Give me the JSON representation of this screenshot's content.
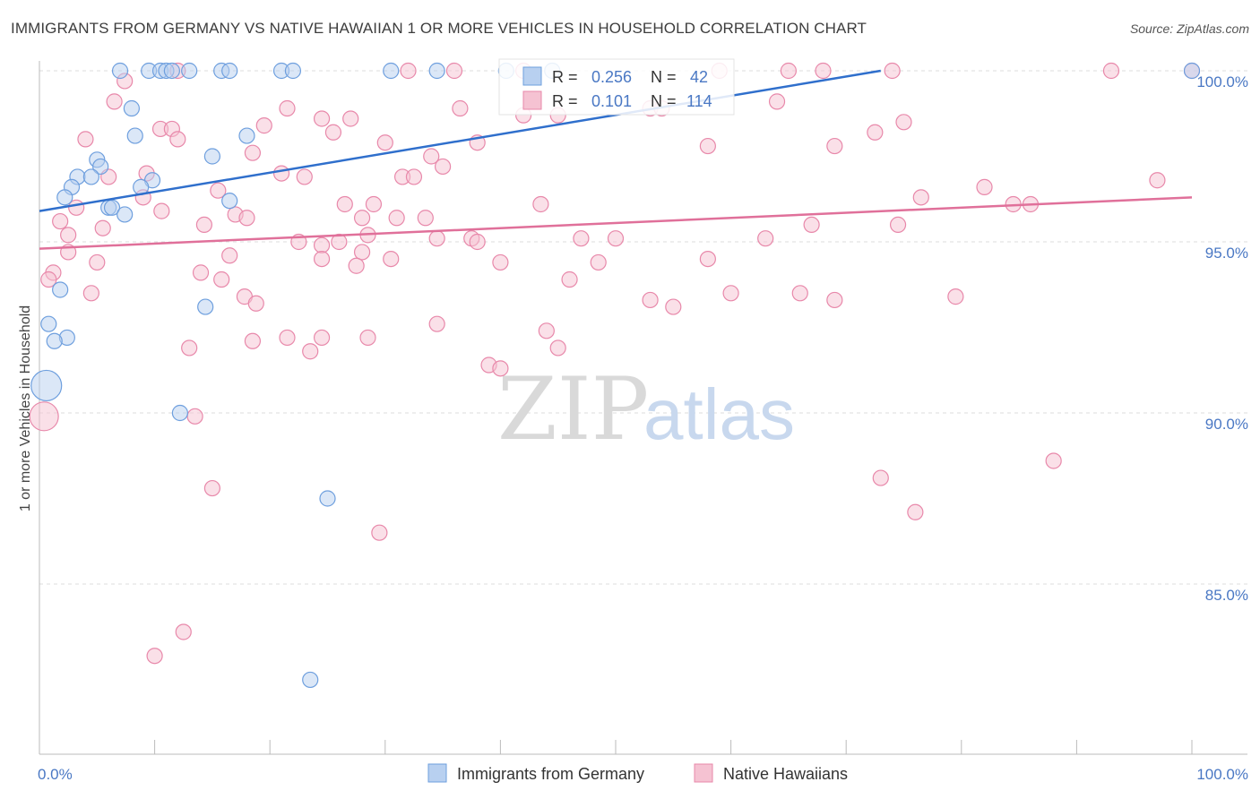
{
  "header": {
    "title": "IMMIGRANTS FROM GERMANY VS NATIVE HAWAIIAN 1 OR MORE VEHICLES IN HOUSEHOLD CORRELATION CHART",
    "source": "Source: ZipAtlas.com"
  },
  "watermark": {
    "zip": "ZIP",
    "atlas": "atlas"
  },
  "chart_data": {
    "type": "scatter",
    "title": "IMMIGRANTS FROM GERMANY VS NATIVE HAWAIIAN 1 OR MORE VEHICLES IN HOUSEHOLD CORRELATION CHART",
    "xlabel": "",
    "ylabel": "1 or more Vehicles in Household",
    "xlim": [
      0,
      100
    ],
    "ylim": [
      80.5,
      100.8
    ],
    "x_ticks": [
      {
        "value": 0,
        "label": "0.0%"
      },
      {
        "value": 100,
        "label": "100.0%"
      }
    ],
    "y_ticks": [
      {
        "value": 100,
        "label": "100.0%"
      },
      {
        "value": 95,
        "label": "95.0%"
      },
      {
        "value": 90,
        "label": "90.0%"
      },
      {
        "value": 85,
        "label": "85.0%"
      }
    ],
    "grid": true,
    "legend_position": "top-center",
    "stats": [
      {
        "series": "Immigrants from Germany",
        "r_label": "R =",
        "r": "0.256",
        "n_label": "N =",
        "n": "42"
      },
      {
        "series": "Native Hawaiians",
        "r_label": "R =",
        "r": "0.101",
        "n_label": "N =",
        "n": "114"
      }
    ],
    "series": [
      {
        "name": "Immigrants from Germany",
        "color": "#6e9fde",
        "fill": "#b8d0f0",
        "trend": {
          "x0": 0,
          "y0": 95.9,
          "x1": 73,
          "y1": 100.0
        },
        "points": [
          {
            "x": 7,
            "y": 100
          },
          {
            "x": 9.5,
            "y": 100
          },
          {
            "x": 10.5,
            "y": 100
          },
          {
            "x": 11,
            "y": 100
          },
          {
            "x": 11.5,
            "y": 100
          },
          {
            "x": 13,
            "y": 100
          },
          {
            "x": 15.8,
            "y": 100
          },
          {
            "x": 16.5,
            "y": 100
          },
          {
            "x": 21,
            "y": 100
          },
          {
            "x": 22,
            "y": 100
          },
          {
            "x": 30.5,
            "y": 100
          },
          {
            "x": 34.5,
            "y": 100
          },
          {
            "x": 40.5,
            "y": 100
          },
          {
            "x": 44.5,
            "y": 100
          },
          {
            "x": 100,
            "y": 100
          },
          {
            "x": 8,
            "y": 98.9
          },
          {
            "x": 8.3,
            "y": 98.1
          },
          {
            "x": 18,
            "y": 98.1
          },
          {
            "x": 5,
            "y": 97.4
          },
          {
            "x": 5.3,
            "y": 97.2
          },
          {
            "x": 15,
            "y": 97.5
          },
          {
            "x": 3.3,
            "y": 96.9
          },
          {
            "x": 4.5,
            "y": 96.9
          },
          {
            "x": 9.8,
            "y": 96.8
          },
          {
            "x": 2.8,
            "y": 96.6
          },
          {
            "x": 8.8,
            "y": 96.6
          },
          {
            "x": 2.2,
            "y": 96.3
          },
          {
            "x": 16.5,
            "y": 96.2
          },
          {
            "x": 6,
            "y": 96.0
          },
          {
            "x": 6.3,
            "y": 96.0
          },
          {
            "x": 7.4,
            "y": 95.8
          },
          {
            "x": 1.8,
            "y": 93.6
          },
          {
            "x": 14.4,
            "y": 93.1
          },
          {
            "x": 0.8,
            "y": 92.6
          },
          {
            "x": 2.4,
            "y": 92.2
          },
          {
            "x": 1.3,
            "y": 92.1
          },
          {
            "x": 0.6,
            "y": 90.8,
            "r": 17
          },
          {
            "x": 12.2,
            "y": 90.0
          },
          {
            "x": 25,
            "y": 87.5
          },
          {
            "x": 23.5,
            "y": 82.2
          }
        ]
      },
      {
        "name": "Native Hawaiians",
        "color": "#e888aa",
        "fill": "#f5c2d2",
        "trend": {
          "x0": 0,
          "y0": 94.8,
          "x1": 100,
          "y1": 96.3
        },
        "points": [
          {
            "x": 12,
            "y": 100
          },
          {
            "x": 32,
            "y": 100
          },
          {
            "x": 36,
            "y": 100
          },
          {
            "x": 42,
            "y": 100
          },
          {
            "x": 59,
            "y": 100
          },
          {
            "x": 65,
            "y": 100
          },
          {
            "x": 68,
            "y": 100
          },
          {
            "x": 74,
            "y": 100
          },
          {
            "x": 93,
            "y": 100
          },
          {
            "x": 100,
            "y": 100
          },
          {
            "x": 7.4,
            "y": 99.7
          },
          {
            "x": 6.5,
            "y": 99.1
          },
          {
            "x": 21.5,
            "y": 98.9
          },
          {
            "x": 36.5,
            "y": 98.9
          },
          {
            "x": 53,
            "y": 98.9
          },
          {
            "x": 54,
            "y": 98.9
          },
          {
            "x": 64,
            "y": 99.1
          },
          {
            "x": 24.5,
            "y": 98.6
          },
          {
            "x": 27,
            "y": 98.6
          },
          {
            "x": 42,
            "y": 98.7
          },
          {
            "x": 45,
            "y": 98.7
          },
          {
            "x": 19.5,
            "y": 98.4
          },
          {
            "x": 25.5,
            "y": 98.2
          },
          {
            "x": 10.5,
            "y": 98.3
          },
          {
            "x": 11.5,
            "y": 98.3
          },
          {
            "x": 12,
            "y": 98.0
          },
          {
            "x": 4,
            "y": 98.0
          },
          {
            "x": 30,
            "y": 97.9
          },
          {
            "x": 38,
            "y": 97.9
          },
          {
            "x": 58,
            "y": 97.8
          },
          {
            "x": 69,
            "y": 97.8
          },
          {
            "x": 72.5,
            "y": 98.2
          },
          {
            "x": 75,
            "y": 98.5
          },
          {
            "x": 18.5,
            "y": 97.6
          },
          {
            "x": 34,
            "y": 97.5
          },
          {
            "x": 35,
            "y": 97.2
          },
          {
            "x": 9.3,
            "y": 97.0
          },
          {
            "x": 21,
            "y": 97.0
          },
          {
            "x": 23,
            "y": 96.9
          },
          {
            "x": 31.5,
            "y": 96.9
          },
          {
            "x": 32.5,
            "y": 96.9
          },
          {
            "x": 97,
            "y": 96.8
          },
          {
            "x": 6,
            "y": 96.9
          },
          {
            "x": 9,
            "y": 96.3
          },
          {
            "x": 15.5,
            "y": 96.5
          },
          {
            "x": 82,
            "y": 96.6
          },
          {
            "x": 76.5,
            "y": 96.3
          },
          {
            "x": 84.5,
            "y": 96.1
          },
          {
            "x": 86,
            "y": 96.1
          },
          {
            "x": 26.5,
            "y": 96.1
          },
          {
            "x": 29,
            "y": 96.1
          },
          {
            "x": 43.5,
            "y": 96.1
          },
          {
            "x": 3.2,
            "y": 96.0
          },
          {
            "x": 10.6,
            "y": 95.9
          },
          {
            "x": 17,
            "y": 95.8
          },
          {
            "x": 28,
            "y": 95.7
          },
          {
            "x": 31,
            "y": 95.7
          },
          {
            "x": 33.5,
            "y": 95.7
          },
          {
            "x": 1.8,
            "y": 95.6
          },
          {
            "x": 14.3,
            "y": 95.5
          },
          {
            "x": 5.5,
            "y": 95.4
          },
          {
            "x": 18,
            "y": 95.7
          },
          {
            "x": 67,
            "y": 95.5
          },
          {
            "x": 74.5,
            "y": 95.5
          },
          {
            "x": 2.5,
            "y": 95.2
          },
          {
            "x": 28.5,
            "y": 95.2
          },
          {
            "x": 22.5,
            "y": 95.0
          },
          {
            "x": 24.5,
            "y": 94.9
          },
          {
            "x": 26,
            "y": 95.0
          },
          {
            "x": 34.5,
            "y": 95.1
          },
          {
            "x": 37.5,
            "y": 95.1
          },
          {
            "x": 38,
            "y": 95.0
          },
          {
            "x": 47,
            "y": 95.1
          },
          {
            "x": 50,
            "y": 95.1
          },
          {
            "x": 63,
            "y": 95.1
          },
          {
            "x": 2.5,
            "y": 94.7
          },
          {
            "x": 16.5,
            "y": 94.6
          },
          {
            "x": 28,
            "y": 94.7
          },
          {
            "x": 24.5,
            "y": 94.5
          },
          {
            "x": 30.5,
            "y": 94.5
          },
          {
            "x": 40,
            "y": 94.4
          },
          {
            "x": 58,
            "y": 94.5
          },
          {
            "x": 48.5,
            "y": 94.4
          },
          {
            "x": 5,
            "y": 94.4
          },
          {
            "x": 27.5,
            "y": 94.3
          },
          {
            "x": 1.2,
            "y": 94.1
          },
          {
            "x": 14,
            "y": 94.1
          },
          {
            "x": 0.8,
            "y": 93.9
          },
          {
            "x": 15.8,
            "y": 93.9
          },
          {
            "x": 46,
            "y": 93.9
          },
          {
            "x": 4.5,
            "y": 93.5
          },
          {
            "x": 17.8,
            "y": 93.4
          },
          {
            "x": 53,
            "y": 93.3
          },
          {
            "x": 60,
            "y": 93.5
          },
          {
            "x": 66,
            "y": 93.5
          },
          {
            "x": 79.5,
            "y": 93.4
          },
          {
            "x": 18.8,
            "y": 93.2
          },
          {
            "x": 55,
            "y": 93.1
          },
          {
            "x": 69,
            "y": 93.3
          },
          {
            "x": 44,
            "y": 92.4
          },
          {
            "x": 34.5,
            "y": 92.6
          },
          {
            "x": 28.5,
            "y": 92.2
          },
          {
            "x": 21.5,
            "y": 92.2
          },
          {
            "x": 24.5,
            "y": 92.2
          },
          {
            "x": 18.5,
            "y": 92.1
          },
          {
            "x": 45,
            "y": 91.9
          },
          {
            "x": 13,
            "y": 91.9
          },
          {
            "x": 23.5,
            "y": 91.8
          },
          {
            "x": 39,
            "y": 91.4
          },
          {
            "x": 40,
            "y": 91.3
          },
          {
            "x": 0.4,
            "y": 89.9,
            "r": 16
          },
          {
            "x": 13.5,
            "y": 89.9
          },
          {
            "x": 73,
            "y": 88.1
          },
          {
            "x": 88,
            "y": 88.6
          },
          {
            "x": 15,
            "y": 87.8
          },
          {
            "x": 76,
            "y": 87.1
          },
          {
            "x": 29.5,
            "y": 86.5
          },
          {
            "x": 12.5,
            "y": 83.6
          },
          {
            "x": 10,
            "y": 82.9
          }
        ]
      }
    ]
  },
  "bottom_legend": [
    {
      "label": "Immigrants from Germany"
    },
    {
      "label": "Native Hawaiians"
    }
  ]
}
